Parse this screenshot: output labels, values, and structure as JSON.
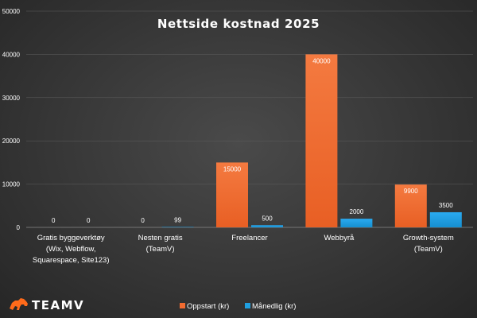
{
  "brand": {
    "logo_text": "TEAMV",
    "accent": "#ff6a1a"
  },
  "chart_data": {
    "type": "bar",
    "title": "Nettside kostnad 2025",
    "xlabel": "",
    "ylabel": "",
    "ylim": [
      0,
      50000
    ],
    "yticks": [
      0,
      10000,
      20000,
      30000,
      40000,
      50000
    ],
    "grid": true,
    "legend": "bottom",
    "categories": [
      [
        "Gratis byggeverktøy",
        "(Wix, Webflow,",
        "Squarespace, Site123)"
      ],
      [
        "Nesten gratis",
        "(TeamV)"
      ],
      [
        "Freelancer"
      ],
      [
        "Webbyrå"
      ],
      [
        "Growth-system",
        "(TeamV)"
      ]
    ],
    "series": [
      {
        "name": "Oppstart (kr)",
        "color": "#f26b30",
        "values": [
          0,
          0,
          15000,
          40000,
          9900
        ]
      },
      {
        "name": "Månedlig (kr)",
        "color": "#1f9fe0",
        "values": [
          0,
          99,
          500,
          2000,
          3500
        ]
      }
    ]
  }
}
